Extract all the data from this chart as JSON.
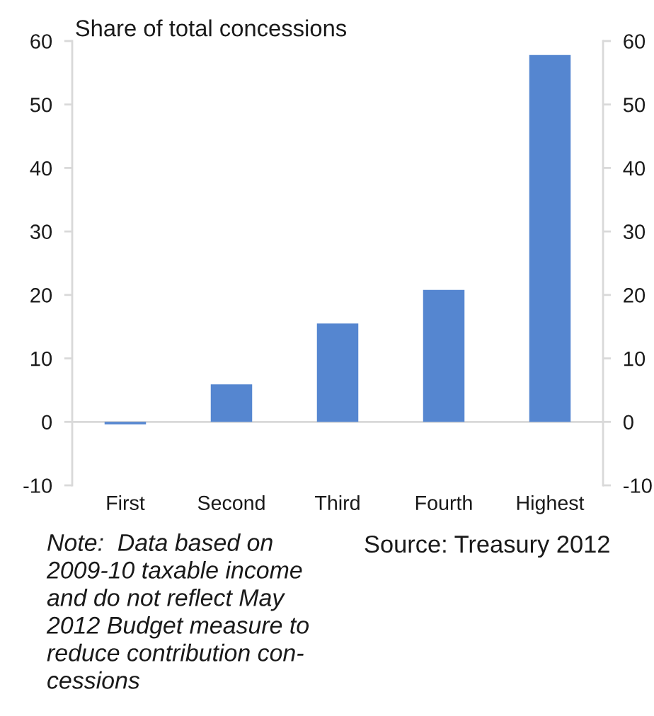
{
  "chart_data": {
    "type": "bar",
    "ylabel": "Share of total concessions",
    "categories": [
      "First",
      "Second",
      "Third",
      "Fourth",
      "Highest"
    ],
    "values": [
      -0.4,
      5.9,
      15.5,
      20.8,
      57.8
    ],
    "color": "#5586d0",
    "ylim": [
      -10,
      60
    ],
    "yticks": [
      -10,
      0,
      10,
      20,
      30,
      40,
      50,
      60
    ],
    "y2lim": [
      -10,
      60
    ],
    "y2ticks": [
      -10,
      0,
      10,
      20,
      30,
      40,
      50,
      60
    ],
    "annotations": [
      "Note:  Data based on\n2009-10 taxable income\nand do not reflect May\n2012 Budget measure to\nreduce contribution con-\ncessions",
      "Source: Treasury 2012"
    ]
  }
}
